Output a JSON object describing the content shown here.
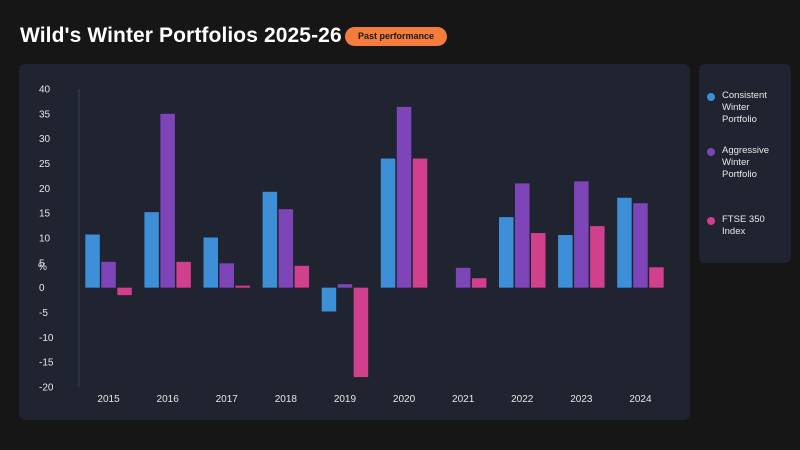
{
  "header": {
    "title": "Wild's Winter Portfolios 2025-26",
    "badge": "Past performance"
  },
  "colors": {
    "background": "#161616",
    "panel": "#1f2430",
    "badge": "#f47c3c"
  },
  "chart_data": {
    "type": "bar",
    "title": "",
    "xlabel": "",
    "ylabel": "%",
    "ylim": [
      -20,
      40
    ],
    "yticks": [
      40,
      35,
      30,
      25,
      20,
      15,
      10,
      5,
      0,
      -5,
      -10,
      -15,
      -20
    ],
    "grid": false,
    "legend_position": "right",
    "categories": [
      "2015",
      "2016",
      "2017",
      "2018",
      "2019",
      "2020",
      "2021",
      "2022",
      "2023",
      "2024"
    ],
    "series": [
      {
        "name": "Consistent Winter Portfolio",
        "color": "#3d8fd8",
        "values": [
          10.7,
          15.2,
          10.1,
          19.3,
          -4.8,
          26.0,
          0.0,
          14.2,
          10.6,
          18.1
        ]
      },
      {
        "name": "Aggressive Winter Portfolio",
        "color": "#7e45b8",
        "values": [
          5.2,
          35.0,
          4.9,
          15.8,
          0.7,
          36.4,
          4.0,
          21.0,
          21.4,
          17.0
        ]
      },
      {
        "name": "FTSE 350 Index",
        "color": "#d0408c",
        "values": [
          -1.5,
          5.2,
          0.4,
          4.4,
          -18.0,
          26.0,
          1.9,
          11.0,
          12.4,
          4.1
        ]
      }
    ]
  },
  "legend": [
    {
      "label": "Consistent Winter Portfolio",
      "color": "#3d8fd8"
    },
    {
      "label": "Aggressive Winter Portfolio",
      "color": "#7e45b8"
    },
    {
      "label": "FTSE 350 Index",
      "color": "#d0408c"
    }
  ]
}
